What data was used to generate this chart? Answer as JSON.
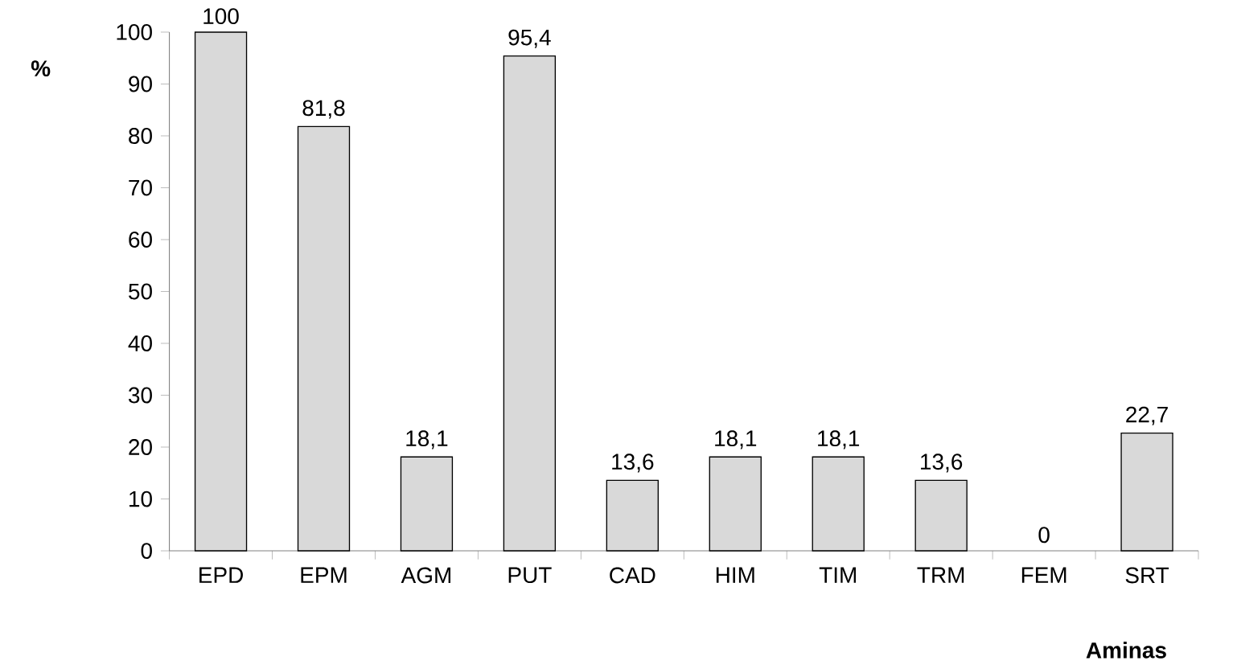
{
  "chart_data": {
    "type": "bar",
    "ylabel": "%",
    "xlabel": "Aminas",
    "categories": [
      "EPD",
      "EPM",
      "AGM",
      "PUT",
      "CAD",
      "HIM",
      "TIM",
      "TRM",
      "FEM",
      "SRT"
    ],
    "values": [
      100,
      81.8,
      18.1,
      95.4,
      13.6,
      18.1,
      18.1,
      13.6,
      0,
      22.7
    ],
    "value_labels": [
      "100",
      "81,8",
      "18,1",
      "95,4",
      "13,6",
      "18,1",
      "18,1",
      "13,6",
      "0",
      "22,7"
    ],
    "color": "#d9d9d9",
    "ylim": [
      0,
      100
    ],
    "yticks": [
      0,
      10,
      20,
      30,
      40,
      50,
      60,
      70,
      80,
      90,
      100
    ]
  }
}
